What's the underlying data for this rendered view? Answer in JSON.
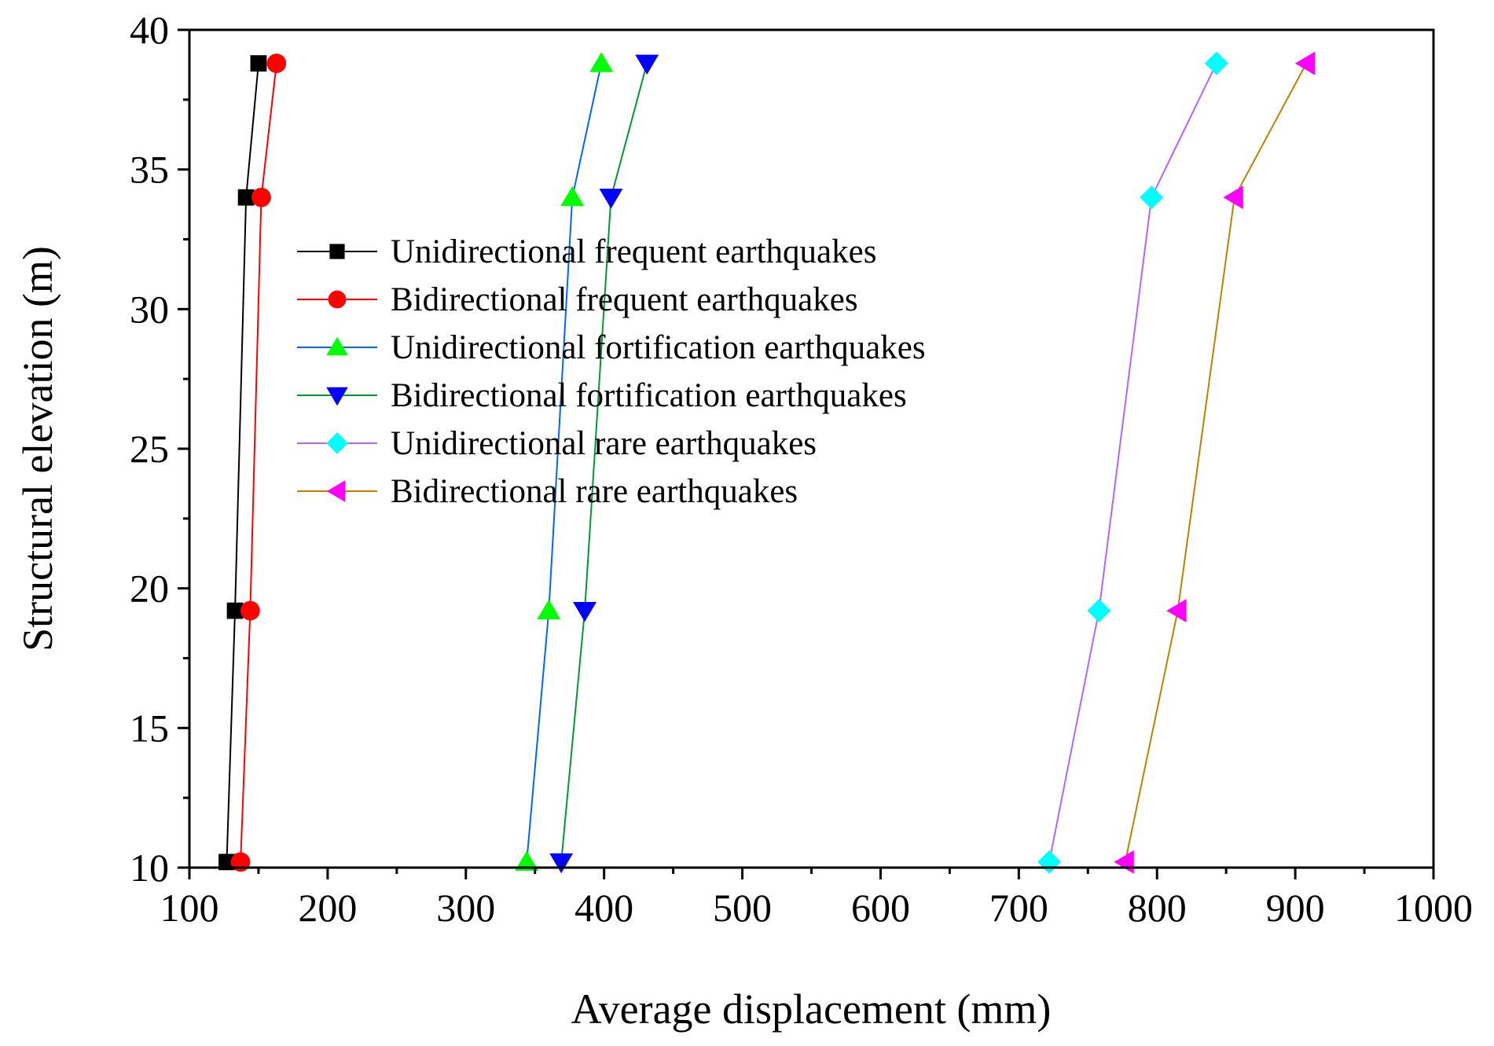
{
  "chart_data": {
    "type": "line",
    "title": "",
    "xlabel": "Average displacement (mm)",
    "ylabel": "Structural elevation (m)",
    "xlim": [
      100,
      1000
    ],
    "ylim": [
      10,
      40
    ],
    "xticks": [
      100,
      200,
      300,
      400,
      500,
      600,
      700,
      800,
      900,
      1000
    ],
    "yticks": [
      10,
      15,
      20,
      25,
      30,
      35,
      40
    ],
    "xtick_labels": [
      "100",
      "200",
      "300",
      "400",
      "500",
      "600",
      "700",
      "800",
      "900",
      "1000"
    ],
    "ytick_labels": [
      "10",
      "15",
      "20",
      "25",
      "30",
      "35",
      "40"
    ],
    "grid": false,
    "legend_position": "upper-left-inside",
    "y": [
      10.2,
      19.2,
      34.0,
      38.8
    ],
    "series": [
      {
        "name": "Unidirectional frequent earthquakes",
        "x": [
          127,
          133,
          141,
          150
        ],
        "color": "#000000",
        "line_color": "#000000",
        "marker": "square"
      },
      {
        "name": "Bidirectional frequent earthquakes",
        "x": [
          137,
          144,
          152,
          163
        ],
        "color": "#ff0000",
        "line_color": "#ff0000",
        "marker": "circle"
      },
      {
        "name": "Unidirectional fortification earthquakes",
        "x": [
          344,
          360,
          377,
          398
        ],
        "color": "#00ff00",
        "line_color": "#0066ff",
        "marker": "triangle-up"
      },
      {
        "name": "Bidirectional fortification earthquakes",
        "x": [
          369,
          386,
          405,
          431
        ],
        "color": "#0000ff",
        "line_color": "#009933",
        "marker": "triangle-down"
      },
      {
        "name": "Unidirectional rare earthquakes",
        "x": [
          722,
          758,
          796,
          843
        ],
        "color": "#00ffff",
        "line_color": "#b266ff",
        "marker": "diamond"
      },
      {
        "name": "Bidirectional rare earthquakes",
        "x": [
          777,
          815,
          856,
          908
        ],
        "color": "#ff00ff",
        "line_color": "#c08000",
        "marker": "triangle-left"
      }
    ]
  }
}
